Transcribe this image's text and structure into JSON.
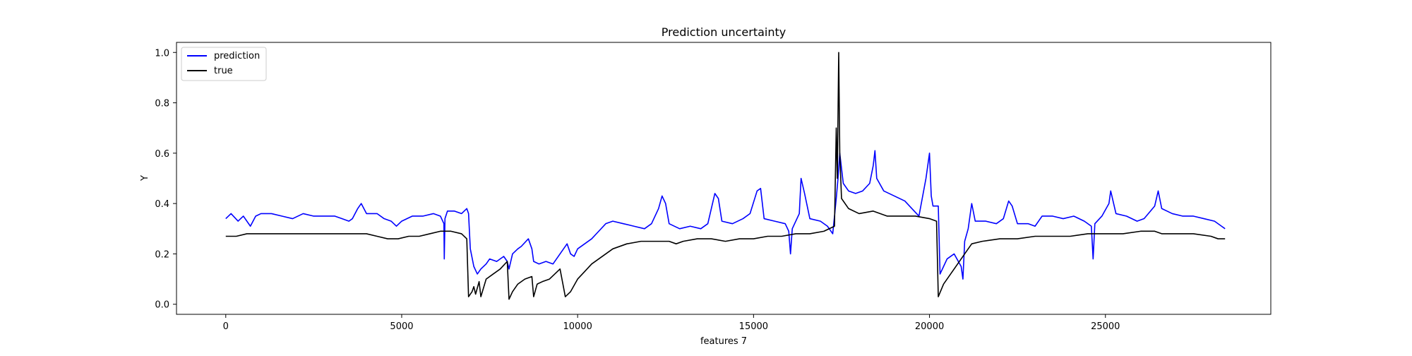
{
  "chart_data": {
    "type": "line",
    "title": "Prediction uncertainty",
    "xlabel": "features 7",
    "ylabel": "Y",
    "xlim": [
      -1400,
      29700
    ],
    "ylim": [
      -0.04,
      1.04
    ],
    "x_ticks": [
      0,
      5000,
      10000,
      15000,
      20000,
      25000
    ],
    "x_tick_labels": [
      "0",
      "5000",
      "10000",
      "15000",
      "20000",
      "25000"
    ],
    "y_ticks": [
      0.0,
      0.2,
      0.4,
      0.6,
      0.8,
      1.0
    ],
    "y_tick_labels": [
      "0.0",
      "0.2",
      "0.4",
      "0.6",
      "0.8",
      "1.0"
    ],
    "grid": false,
    "legend_position": "upper-left",
    "series": [
      {
        "name": "prediction",
        "color": "#0000ff",
        "points": [
          [
            0,
            0.34
          ],
          [
            150,
            0.36
          ],
          [
            350,
            0.33
          ],
          [
            500,
            0.35
          ],
          [
            700,
            0.31
          ],
          [
            850,
            0.35
          ],
          [
            1000,
            0.36
          ],
          [
            1300,
            0.36
          ],
          [
            1600,
            0.35
          ],
          [
            1900,
            0.34
          ],
          [
            2200,
            0.36
          ],
          [
            2500,
            0.35
          ],
          [
            2800,
            0.35
          ],
          [
            3100,
            0.35
          ],
          [
            3300,
            0.34
          ],
          [
            3500,
            0.33
          ],
          [
            3600,
            0.34
          ],
          [
            3750,
            0.38
          ],
          [
            3850,
            0.4
          ],
          [
            4000,
            0.36
          ],
          [
            4300,
            0.36
          ],
          [
            4500,
            0.34
          ],
          [
            4700,
            0.33
          ],
          [
            4850,
            0.31
          ],
          [
            5000,
            0.33
          ],
          [
            5300,
            0.35
          ],
          [
            5600,
            0.35
          ],
          [
            5900,
            0.36
          ],
          [
            6100,
            0.35
          ],
          [
            6200,
            0.32
          ],
          [
            6210,
            0.18
          ],
          [
            6230,
            0.34
          ],
          [
            6300,
            0.37
          ],
          [
            6500,
            0.37
          ],
          [
            6700,
            0.36
          ],
          [
            6850,
            0.38
          ],
          [
            6900,
            0.36
          ],
          [
            6950,
            0.22
          ],
          [
            7050,
            0.15
          ],
          [
            7150,
            0.12
          ],
          [
            7250,
            0.14
          ],
          [
            7400,
            0.16
          ],
          [
            7500,
            0.18
          ],
          [
            7700,
            0.17
          ],
          [
            7900,
            0.19
          ],
          [
            8000,
            0.17
          ],
          [
            8050,
            0.14
          ],
          [
            8150,
            0.2
          ],
          [
            8300,
            0.22
          ],
          [
            8400,
            0.23
          ],
          [
            8600,
            0.26
          ],
          [
            8700,
            0.22
          ],
          [
            8750,
            0.17
          ],
          [
            8900,
            0.16
          ],
          [
            9100,
            0.17
          ],
          [
            9300,
            0.16
          ],
          [
            9500,
            0.2
          ],
          [
            9700,
            0.24
          ],
          [
            9800,
            0.2
          ],
          [
            9900,
            0.19
          ],
          [
            10000,
            0.22
          ],
          [
            10200,
            0.24
          ],
          [
            10400,
            0.26
          ],
          [
            10600,
            0.29
          ],
          [
            10800,
            0.32
          ],
          [
            11000,
            0.33
          ],
          [
            11300,
            0.32
          ],
          [
            11600,
            0.31
          ],
          [
            11900,
            0.3
          ],
          [
            12100,
            0.32
          ],
          [
            12300,
            0.38
          ],
          [
            12400,
            0.43
          ],
          [
            12500,
            0.4
          ],
          [
            12600,
            0.32
          ],
          [
            12900,
            0.3
          ],
          [
            13200,
            0.31
          ],
          [
            13500,
            0.3
          ],
          [
            13700,
            0.32
          ],
          [
            13900,
            0.44
          ],
          [
            14000,
            0.42
          ],
          [
            14100,
            0.33
          ],
          [
            14400,
            0.32
          ],
          [
            14700,
            0.34
          ],
          [
            14900,
            0.36
          ],
          [
            15100,
            0.45
          ],
          [
            15200,
            0.46
          ],
          [
            15300,
            0.34
          ],
          [
            15600,
            0.33
          ],
          [
            15900,
            0.32
          ],
          [
            16000,
            0.29
          ],
          [
            16050,
            0.2
          ],
          [
            16100,
            0.3
          ],
          [
            16300,
            0.36
          ],
          [
            16350,
            0.5
          ],
          [
            16450,
            0.44
          ],
          [
            16600,
            0.34
          ],
          [
            16900,
            0.33
          ],
          [
            17100,
            0.31
          ],
          [
            17250,
            0.28
          ],
          [
            17350,
            0.42
          ],
          [
            17400,
            0.5
          ],
          [
            17450,
            0.6
          ],
          [
            17550,
            0.48
          ],
          [
            17700,
            0.45
          ],
          [
            17900,
            0.44
          ],
          [
            18100,
            0.45
          ],
          [
            18300,
            0.48
          ],
          [
            18400,
            0.55
          ],
          [
            18450,
            0.61
          ],
          [
            18500,
            0.5
          ],
          [
            18700,
            0.45
          ],
          [
            19000,
            0.43
          ],
          [
            19300,
            0.41
          ],
          [
            19500,
            0.38
          ],
          [
            19700,
            0.35
          ],
          [
            19900,
            0.5
          ],
          [
            20000,
            0.6
          ],
          [
            20050,
            0.43
          ],
          [
            20100,
            0.39
          ],
          [
            20250,
            0.39
          ],
          [
            20300,
            0.12
          ],
          [
            20400,
            0.15
          ],
          [
            20500,
            0.18
          ],
          [
            20700,
            0.2
          ],
          [
            20900,
            0.15
          ],
          [
            20950,
            0.1
          ],
          [
            21000,
            0.25
          ],
          [
            21100,
            0.3
          ],
          [
            21200,
            0.4
          ],
          [
            21300,
            0.33
          ],
          [
            21600,
            0.33
          ],
          [
            21900,
            0.32
          ],
          [
            22100,
            0.34
          ],
          [
            22250,
            0.41
          ],
          [
            22350,
            0.39
          ],
          [
            22500,
            0.32
          ],
          [
            22800,
            0.32
          ],
          [
            23000,
            0.31
          ],
          [
            23200,
            0.35
          ],
          [
            23500,
            0.35
          ],
          [
            23800,
            0.34
          ],
          [
            24100,
            0.35
          ],
          [
            24400,
            0.33
          ],
          [
            24600,
            0.31
          ],
          [
            24650,
            0.18
          ],
          [
            24700,
            0.32
          ],
          [
            24900,
            0.35
          ],
          [
            25100,
            0.4
          ],
          [
            25150,
            0.45
          ],
          [
            25300,
            0.36
          ],
          [
            25600,
            0.35
          ],
          [
            25900,
            0.33
          ],
          [
            26100,
            0.34
          ],
          [
            26400,
            0.39
          ],
          [
            26500,
            0.45
          ],
          [
            26600,
            0.38
          ],
          [
            26900,
            0.36
          ],
          [
            27200,
            0.35
          ],
          [
            27500,
            0.35
          ],
          [
            27800,
            0.34
          ],
          [
            28100,
            0.33
          ],
          [
            28300,
            0.31
          ],
          [
            28400,
            0.3
          ]
        ]
      },
      {
        "name": "true",
        "color": "#000000",
        "points": [
          [
            0,
            0.27
          ],
          [
            300,
            0.27
          ],
          [
            600,
            0.28
          ],
          [
            1000,
            0.28
          ],
          [
            1500,
            0.28
          ],
          [
            2000,
            0.28
          ],
          [
            2500,
            0.28
          ],
          [
            3000,
            0.28
          ],
          [
            3500,
            0.28
          ],
          [
            4000,
            0.28
          ],
          [
            4300,
            0.27
          ],
          [
            4600,
            0.26
          ],
          [
            4900,
            0.26
          ],
          [
            5200,
            0.27
          ],
          [
            5500,
            0.27
          ],
          [
            5800,
            0.28
          ],
          [
            6100,
            0.29
          ],
          [
            6400,
            0.29
          ],
          [
            6700,
            0.28
          ],
          [
            6850,
            0.26
          ],
          [
            6900,
            0.03
          ],
          [
            7000,
            0.05
          ],
          [
            7050,
            0.07
          ],
          [
            7100,
            0.04
          ],
          [
            7200,
            0.09
          ],
          [
            7250,
            0.03
          ],
          [
            7400,
            0.1
          ],
          [
            7600,
            0.12
          ],
          [
            7800,
            0.14
          ],
          [
            8000,
            0.17
          ],
          [
            8050,
            0.02
          ],
          [
            8150,
            0.05
          ],
          [
            8300,
            0.08
          ],
          [
            8500,
            0.1
          ],
          [
            8700,
            0.11
          ],
          [
            8750,
            0.03
          ],
          [
            8850,
            0.08
          ],
          [
            9000,
            0.09
          ],
          [
            9200,
            0.1
          ],
          [
            9500,
            0.14
          ],
          [
            9650,
            0.03
          ],
          [
            9800,
            0.05
          ],
          [
            10000,
            0.1
          ],
          [
            10200,
            0.13
          ],
          [
            10400,
            0.16
          ],
          [
            10600,
            0.18
          ],
          [
            10800,
            0.2
          ],
          [
            11000,
            0.22
          ],
          [
            11400,
            0.24
          ],
          [
            11800,
            0.25
          ],
          [
            12200,
            0.25
          ],
          [
            12600,
            0.25
          ],
          [
            12800,
            0.24
          ],
          [
            13000,
            0.25
          ],
          [
            13400,
            0.26
          ],
          [
            13800,
            0.26
          ],
          [
            14200,
            0.25
          ],
          [
            14600,
            0.26
          ],
          [
            15000,
            0.26
          ],
          [
            15400,
            0.27
          ],
          [
            15800,
            0.27
          ],
          [
            16200,
            0.28
          ],
          [
            16600,
            0.28
          ],
          [
            17000,
            0.29
          ],
          [
            17300,
            0.31
          ],
          [
            17350,
            0.7
          ],
          [
            17380,
            0.5
          ],
          [
            17420,
            1.0
          ],
          [
            17450,
            0.6
          ],
          [
            17500,
            0.42
          ],
          [
            17700,
            0.38
          ],
          [
            18000,
            0.36
          ],
          [
            18400,
            0.37
          ],
          [
            18800,
            0.35
          ],
          [
            19200,
            0.35
          ],
          [
            19600,
            0.35
          ],
          [
            20000,
            0.34
          ],
          [
            20200,
            0.33
          ],
          [
            20250,
            0.03
          ],
          [
            20400,
            0.08
          ],
          [
            20600,
            0.12
          ],
          [
            20800,
            0.16
          ],
          [
            21000,
            0.2
          ],
          [
            21200,
            0.24
          ],
          [
            21500,
            0.25
          ],
          [
            22000,
            0.26
          ],
          [
            22500,
            0.26
          ],
          [
            23000,
            0.27
          ],
          [
            23500,
            0.27
          ],
          [
            24000,
            0.27
          ],
          [
            24500,
            0.28
          ],
          [
            25000,
            0.28
          ],
          [
            25500,
            0.28
          ],
          [
            26000,
            0.29
          ],
          [
            26400,
            0.29
          ],
          [
            26600,
            0.28
          ],
          [
            27000,
            0.28
          ],
          [
            27500,
            0.28
          ],
          [
            28000,
            0.27
          ],
          [
            28200,
            0.26
          ],
          [
            28400,
            0.26
          ]
        ]
      }
    ]
  }
}
